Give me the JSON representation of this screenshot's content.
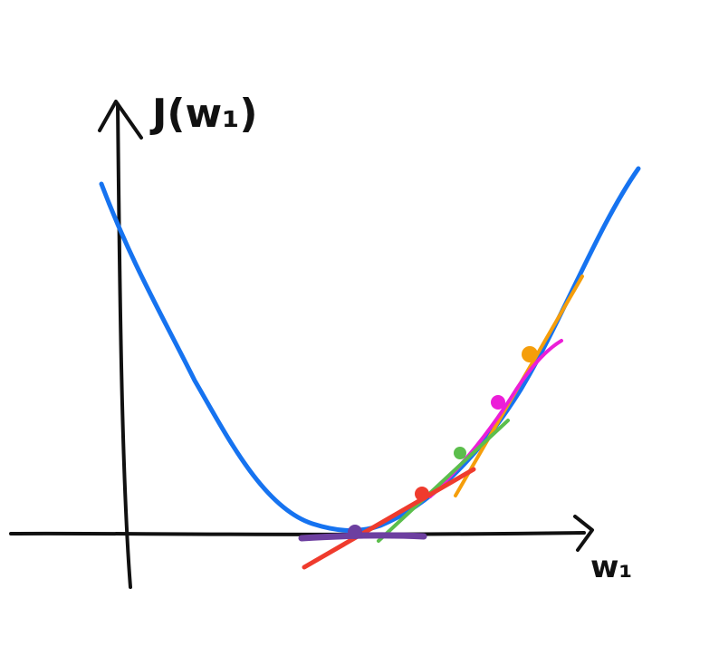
{
  "labels": {
    "y_axis": "J(w₁)",
    "x_axis": "w₁"
  },
  "colors": {
    "axis": "#111111",
    "curve": "#1673F0",
    "tangent_orange": "#F59E0B",
    "tangent_magenta": "#EC1ED8",
    "tangent_green": "#5BBE4C",
    "tangent_red": "#EF3B2D",
    "tangent_purple": "#6D3FA0"
  }
}
